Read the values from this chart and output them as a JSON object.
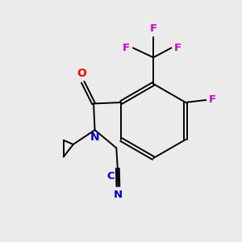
{
  "background_color": "#ebebeb",
  "bond_color": "#000000",
  "atom_colors": {
    "O": "#ff0000",
    "N": "#0000cc",
    "F": "#cc00cc",
    "C_label": "#0000cc"
  },
  "figsize": [
    3.0,
    3.0
  ],
  "dpi": 100
}
